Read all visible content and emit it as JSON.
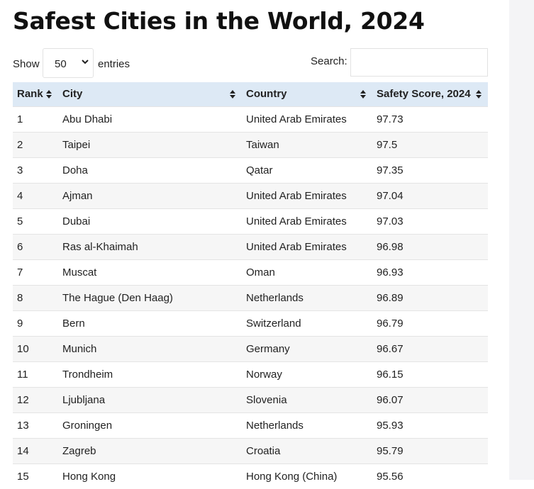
{
  "page_title": "Safest Cities in the World, 2024",
  "controls": {
    "show_label": "Show",
    "page_length": "50",
    "entries_label": "entries",
    "search_label": "Search:",
    "search_value": ""
  },
  "table": {
    "columns": [
      "Rank",
      "City",
      "Country",
      "Safety Score, 2024"
    ],
    "rows": [
      [
        "1",
        "Abu Dhabi",
        "United Arab Emirates",
        "97.73"
      ],
      [
        "2",
        "Taipei",
        "Taiwan",
        "97.5"
      ],
      [
        "3",
        "Doha",
        "Qatar",
        "97.35"
      ],
      [
        "4",
        "Ajman",
        "United Arab Emirates",
        "97.04"
      ],
      [
        "5",
        "Dubai",
        "United Arab Emirates",
        "97.03"
      ],
      [
        "6",
        "Ras al-Khaimah",
        "United Arab Emirates",
        "96.98"
      ],
      [
        "7",
        "Muscat",
        "Oman",
        "96.93"
      ],
      [
        "8",
        "The Hague (Den Haag)",
        "Netherlands",
        "96.89"
      ],
      [
        "9",
        "Bern",
        "Switzerland",
        "96.79"
      ],
      [
        "10",
        "Munich",
        "Germany",
        "96.67"
      ],
      [
        "11",
        "Trondheim",
        "Norway",
        "96.15"
      ],
      [
        "12",
        "Ljubljana",
        "Slovenia",
        "96.07"
      ],
      [
        "13",
        "Groningen",
        "Netherlands",
        "95.93"
      ],
      [
        "14",
        "Zagreb",
        "Croatia",
        "95.79"
      ],
      [
        "15",
        "Hong Kong",
        "Hong Kong (China)",
        "95.56"
      ]
    ]
  }
}
